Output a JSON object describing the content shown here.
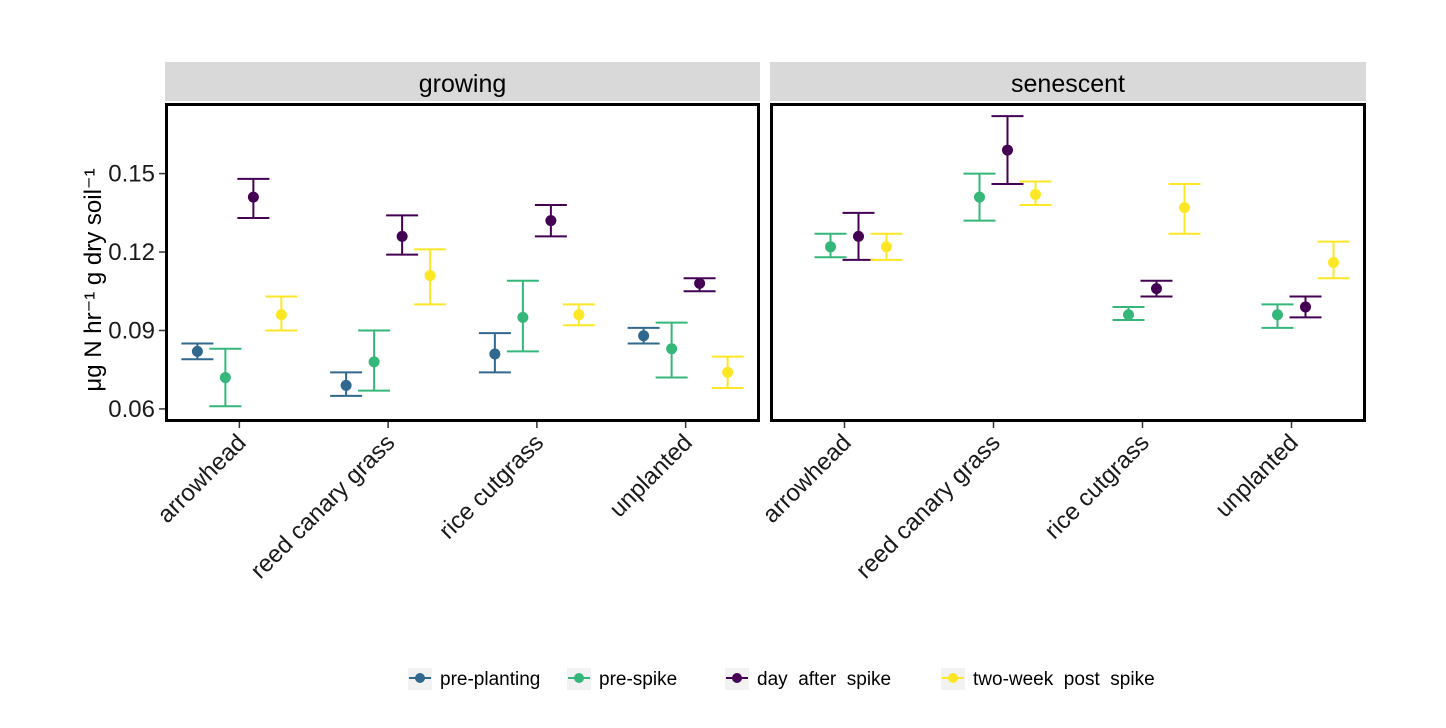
{
  "chart_data": {
    "type": "scatter",
    "subtype": "point-with-errorbars, faceted",
    "ylabel": "μg N hr⁻¹ g dry soil⁻¹",
    "ylim": [
      0.055,
      0.177
    ],
    "yticks": [
      "0.06",
      "0.09",
      "0.12",
      "0.15"
    ],
    "ytick_values": [
      0.06,
      0.09,
      0.12,
      0.15
    ],
    "grid": false,
    "legend_position": "bottom",
    "categories": [
      "arrowhead",
      "reed canary grass",
      "rice cutgrass",
      "unplanted"
    ],
    "series": [
      {
        "name": "pre-planting",
        "color": "#31688e"
      },
      {
        "name": "pre-spike",
        "color": "#35b779"
      },
      {
        "name": "day  after  spike",
        "color": "#440154"
      },
      {
        "name": "two-week  post  spike",
        "color": "#fde725"
      }
    ],
    "facets": [
      {
        "title": "growing",
        "points": [
          {
            "category": "arrowhead",
            "series": "pre-planting",
            "y": 0.082,
            "ymin": 0.079,
            "ymax": 0.085
          },
          {
            "category": "arrowhead",
            "series": "pre-spike",
            "y": 0.072,
            "ymin": 0.061,
            "ymax": 0.083
          },
          {
            "category": "arrowhead",
            "series": "day  after  spike",
            "y": 0.141,
            "ymin": 0.133,
            "ymax": 0.148
          },
          {
            "category": "arrowhead",
            "series": "two-week  post  spike",
            "y": 0.096,
            "ymin": 0.09,
            "ymax": 0.103
          },
          {
            "category": "reed canary grass",
            "series": "pre-planting",
            "y": 0.069,
            "ymin": 0.065,
            "ymax": 0.074
          },
          {
            "category": "reed canary grass",
            "series": "pre-spike",
            "y": 0.078,
            "ymin": 0.067,
            "ymax": 0.09
          },
          {
            "category": "reed canary grass",
            "series": "day  after  spike",
            "y": 0.126,
            "ymin": 0.119,
            "ymax": 0.134
          },
          {
            "category": "reed canary grass",
            "series": "two-week  post  spike",
            "y": 0.111,
            "ymin": 0.1,
            "ymax": 0.121
          },
          {
            "category": "rice cutgrass",
            "series": "pre-planting",
            "y": 0.081,
            "ymin": 0.074,
            "ymax": 0.089
          },
          {
            "category": "rice cutgrass",
            "series": "pre-spike",
            "y": 0.095,
            "ymin": 0.082,
            "ymax": 0.109
          },
          {
            "category": "rice cutgrass",
            "series": "day  after  spike",
            "y": 0.132,
            "ymin": 0.126,
            "ymax": 0.138
          },
          {
            "category": "rice cutgrass",
            "series": "two-week  post  spike",
            "y": 0.096,
            "ymin": 0.092,
            "ymax": 0.1
          },
          {
            "category": "unplanted",
            "series": "pre-planting",
            "y": 0.088,
            "ymin": 0.085,
            "ymax": 0.091
          },
          {
            "category": "unplanted",
            "series": "pre-spike",
            "y": 0.083,
            "ymin": 0.072,
            "ymax": 0.093
          },
          {
            "category": "unplanted",
            "series": "day  after  spike",
            "y": 0.108,
            "ymin": 0.105,
            "ymax": 0.11
          },
          {
            "category": "unplanted",
            "series": "two-week  post  spike",
            "y": 0.074,
            "ymin": 0.068,
            "ymax": 0.08
          }
        ]
      },
      {
        "title": "senescent",
        "points": [
          {
            "category": "arrowhead",
            "series": "pre-spike",
            "y": 0.122,
            "ymin": 0.118,
            "ymax": 0.127
          },
          {
            "category": "arrowhead",
            "series": "day  after  spike",
            "y": 0.126,
            "ymin": 0.117,
            "ymax": 0.135
          },
          {
            "category": "arrowhead",
            "series": "two-week  post  spike",
            "y": 0.122,
            "ymin": 0.117,
            "ymax": 0.127
          },
          {
            "category": "reed canary grass",
            "series": "pre-spike",
            "y": 0.141,
            "ymin": 0.132,
            "ymax": 0.15
          },
          {
            "category": "reed canary grass",
            "series": "day  after  spike",
            "y": 0.159,
            "ymin": 0.146,
            "ymax": 0.172
          },
          {
            "category": "reed canary grass",
            "series": "two-week  post  spike",
            "y": 0.142,
            "ymin": 0.138,
            "ymax": 0.147
          },
          {
            "category": "rice cutgrass",
            "series": "pre-spike",
            "y": 0.096,
            "ymin": 0.094,
            "ymax": 0.099
          },
          {
            "category": "rice cutgrass",
            "series": "day  after  spike",
            "y": 0.106,
            "ymin": 0.103,
            "ymax": 0.109
          },
          {
            "category": "rice cutgrass",
            "series": "two-week  post  spike",
            "y": 0.137,
            "ymin": 0.127,
            "ymax": 0.146
          },
          {
            "category": "unplanted",
            "series": "pre-spike",
            "y": 0.096,
            "ymin": 0.091,
            "ymax": 0.1
          },
          {
            "category": "unplanted",
            "series": "day  after  spike",
            "y": 0.099,
            "ymin": 0.095,
            "ymax": 0.103
          },
          {
            "category": "unplanted",
            "series": "two-week  post  spike",
            "y": 0.116,
            "ymin": 0.11,
            "ymax": 0.124
          }
        ]
      }
    ]
  }
}
